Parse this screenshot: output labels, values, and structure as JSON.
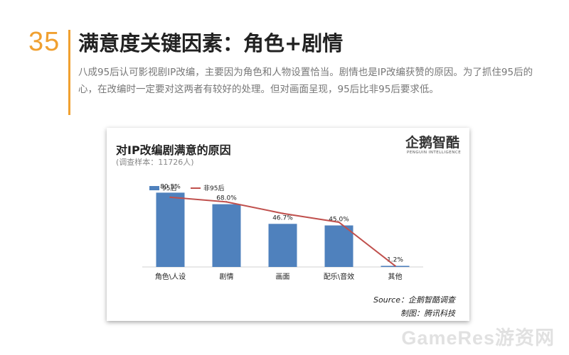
{
  "slide": {
    "number": "35",
    "title": "满意度关键因素：角色+剧情",
    "description": "八成95后认可影视剧IP改编，主要因为角色和人物设置恰当。剧情也是IP改编获赞的原因。为了抓住95后的心，在改编时一定要对这两者有较好的处理。但对画面呈现，95后比非95后要求低。",
    "accent_color": "#f0a030"
  },
  "logo": {
    "text": "企鹅智酷",
    "subtext": "PENGUIN INTELLIGENCE"
  },
  "footer": {
    "source": "Source：企鹅智酷调查",
    "maker": "制图：腾讯科技"
  },
  "watermark": "GameRes游资网",
  "chart_data": {
    "type": "bar",
    "title": "对IP改编剧满意的原因",
    "subtitle": "(调查样本：11726人)",
    "categories": [
      "角色\\人设",
      "剧情",
      "画面",
      "配乐\\音效",
      "其他"
    ],
    "series": [
      {
        "name": "95后",
        "type": "bar",
        "color": "#4f81bd",
        "values": [
          80.5,
          68.0,
          46.7,
          45.0,
          1.2
        ],
        "data_labels": [
          "80.5%",
          "68.0%",
          "46.7%",
          "45.0%",
          "1.2%"
        ]
      },
      {
        "name": "非95后",
        "type": "line",
        "color": "#c0504d",
        "values": [
          75.5,
          70.5,
          58.0,
          48.5,
          1.2
        ]
      }
    ],
    "ylim": [
      0,
      100
    ],
    "grid": false,
    "legend_position": "top-left"
  }
}
